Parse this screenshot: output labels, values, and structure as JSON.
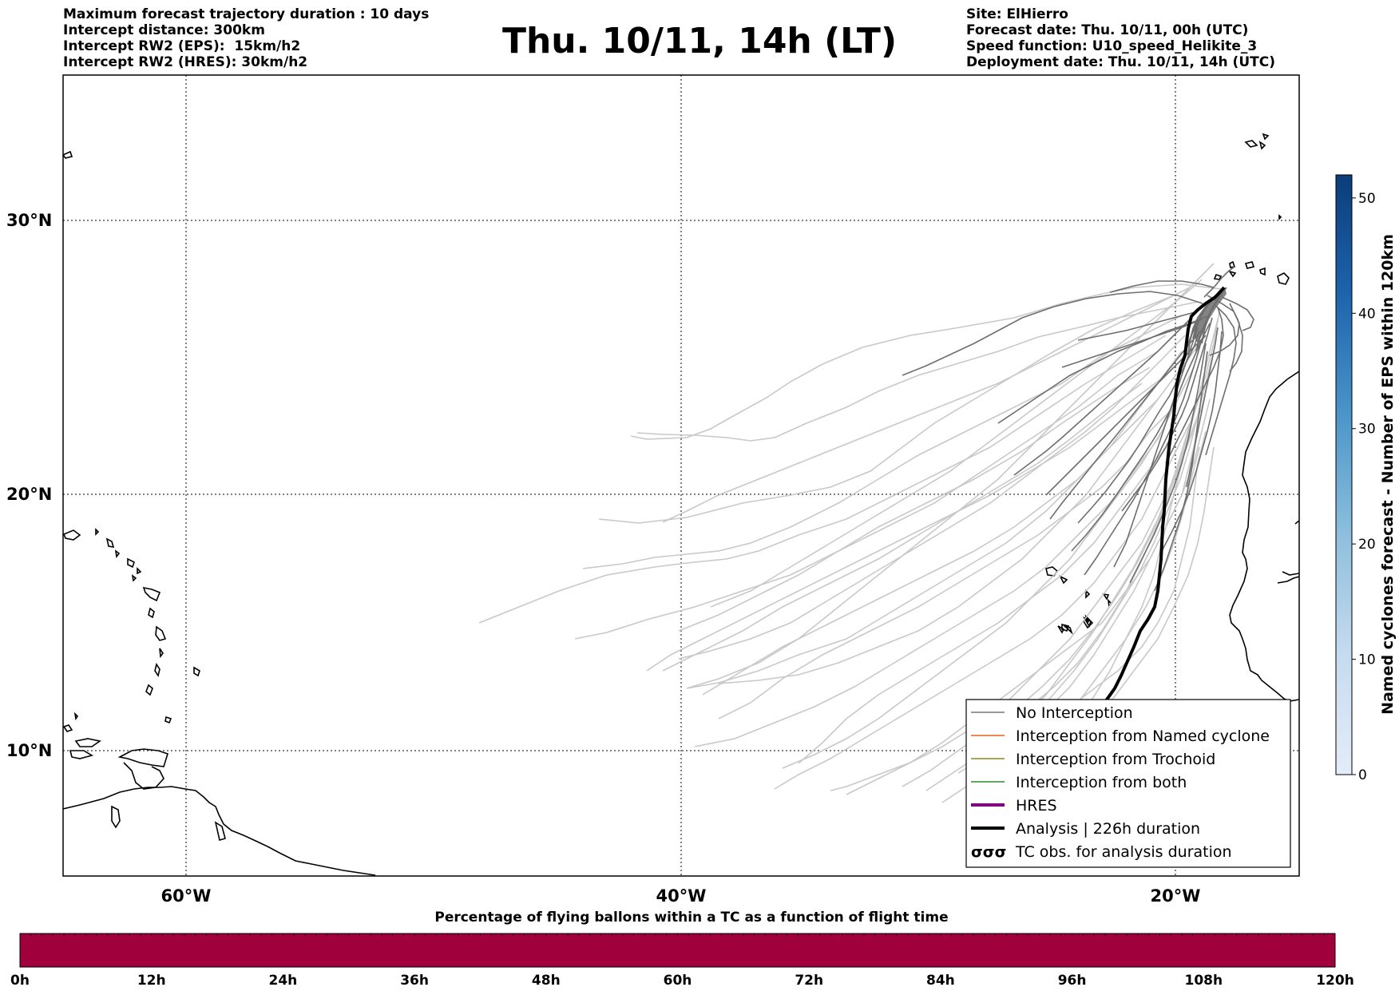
{
  "header_left": [
    "Maximum forecast trajectory duration : 10 days",
    "Intercept distance: 300km",
    "Intercept RW2 (EPS):  15km/h2",
    "Intercept RW2 (HRES): 30km/h2"
  ],
  "header_right": [
    "Site: ElHierro",
    "Forecast date: Thu. 10/11, 00h (UTC)",
    "Speed function: U10_speed_Helikite_3",
    "Deployment date: Thu. 10/11, 14h (UTC)"
  ],
  "title": "Thu. 10/11, 14h (LT)",
  "map": {
    "lat_labels": [
      "30°N",
      "20°N",
      "10°N"
    ],
    "lon_labels": [
      "60°W",
      "40°W",
      "20°W"
    ],
    "grid": "dotted",
    "lon_range": [
      -65,
      -15
    ],
    "lat_range": [
      5,
      35
    ]
  },
  "legend": {
    "placement": "lower-right",
    "items": [
      {
        "label": "No Interception",
        "color": "#777777",
        "style": "line"
      },
      {
        "label": "Interception from Named cyclone",
        "color": "#e8601c",
        "style": "line"
      },
      {
        "label": "Interception from Trochoid",
        "color": "#8a8a1a",
        "style": "line"
      },
      {
        "label": "Interception from both",
        "color": "#2e8b2e",
        "style": "line"
      },
      {
        "label": "HRES",
        "color": "#800080",
        "style": "thick"
      },
      {
        "label": "Analysis | 226h duration",
        "color": "#000000",
        "style": "thick"
      },
      {
        "label": "TC obs. for analysis duration",
        "color": "#000000",
        "style": "symbol",
        "symbol": "σσσ"
      }
    ]
  },
  "colorbar_right": {
    "label": "Named cyclones forecast - Number of EPS within 120km",
    "ticks": [
      "0",
      "10",
      "20",
      "30",
      "40",
      "50"
    ],
    "range": [
      0,
      52
    ],
    "color_low": "#e4edf8",
    "color_high": "#0b3d7a"
  },
  "bottom_bar": {
    "title": "Percentage of flying ballons within a TC as a function of flight time",
    "ticks": [
      "0h",
      "12h",
      "24h",
      "36h",
      "48h",
      "60h",
      "72h",
      "84h",
      "96h",
      "108h",
      "120h"
    ],
    "color": "#a0003c"
  }
}
